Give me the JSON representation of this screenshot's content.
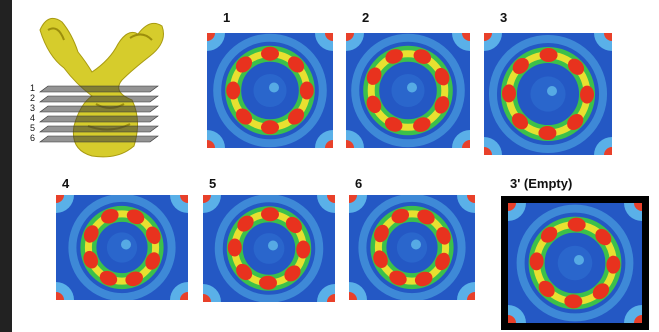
{
  "figure": {
    "panels": [
      {
        "label": "1"
      },
      {
        "label": "2"
      },
      {
        "label": "3"
      },
      {
        "label": "4"
      },
      {
        "label": "5"
      },
      {
        "label": "6"
      },
      {
        "label": "3' (Empty)"
      }
    ],
    "slice_labels": [
      "1",
      "2",
      "3",
      "4",
      "5",
      "6"
    ]
  }
}
